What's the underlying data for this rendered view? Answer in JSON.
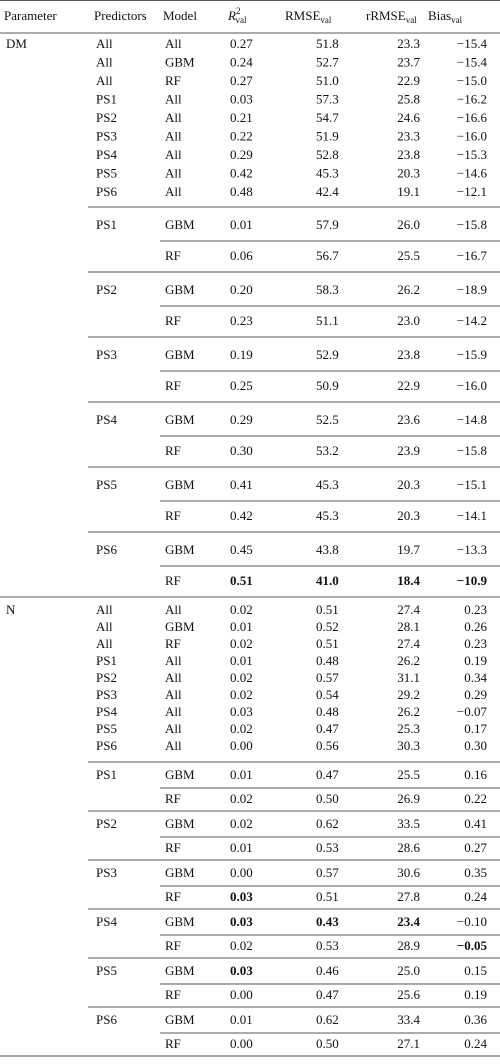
{
  "table": {
    "columns": [
      "Parameter",
      "Predictors",
      "Model",
      {
        "main": "R",
        "sup": "2",
        "sub": "val"
      },
      {
        "main": "RMSE",
        "sub": "val"
      },
      {
        "main": "rRMSE",
        "sub": "val"
      },
      {
        "main": "Bias",
        "sub": "val"
      }
    ],
    "groups": [
      {
        "parameter": "DM",
        "rows": [
          [
            "All",
            "All",
            "0.27",
            "51.8",
            "23.3",
            "−15.4"
          ],
          [
            "All",
            "GBM",
            "0.24",
            "52.7",
            "23.7",
            "−15.4"
          ],
          [
            "All",
            "RF",
            "0.27",
            "51.0",
            "22.9",
            "−15.0"
          ],
          [
            "PS1",
            "All",
            "0.03",
            "57.3",
            "25.8",
            "−16.2"
          ],
          [
            "PS2",
            "All",
            "0.21",
            "54.7",
            "24.6",
            "−16.6"
          ],
          [
            "PS3",
            "All",
            "0.22",
            "51.9",
            "23.3",
            "−16.0"
          ],
          [
            "PS4",
            "All",
            "0.29",
            "52.8",
            "23.8",
            "−15.3"
          ],
          [
            "PS5",
            "All",
            "0.42",
            "45.3",
            "20.3",
            "−14.6"
          ],
          [
            "PS6",
            "All",
            "0.48",
            "42.4",
            "19.1",
            "−12.1"
          ]
        ],
        "blocks": [
          {
            "predictors": "PS1",
            "rows": [
              {
                "cells": [
                  "GBM",
                  "0.01",
                  "57.9",
                  "26.0",
                  "−15.8"
                ]
              },
              {
                "cells": [
                  "RF",
                  "0.06",
                  "56.7",
                  "25.5",
                  "−16.7"
                ]
              }
            ]
          },
          {
            "predictors": "PS2",
            "rows": [
              {
                "cells": [
                  "GBM",
                  "0.20",
                  "58.3",
                  "26.2",
                  "−18.9"
                ]
              },
              {
                "cells": [
                  "RF",
                  "0.23",
                  "51.1",
                  "23.0",
                  "−14.2"
                ]
              }
            ]
          },
          {
            "predictors": "PS3",
            "rows": [
              {
                "cells": [
                  "GBM",
                  "0.19",
                  "52.9",
                  "23.8",
                  "−15.9"
                ]
              },
              {
                "cells": [
                  "RF",
                  "0.25",
                  "50.9",
                  "22.9",
                  "−16.0"
                ]
              }
            ]
          },
          {
            "predictors": "PS4",
            "rows": [
              {
                "cells": [
                  "GBM",
                  "0.29",
                  "52.5",
                  "23.6",
                  "−14.8"
                ]
              },
              {
                "cells": [
                  "RF",
                  "0.30",
                  "53.2",
                  "23.9",
                  "−15.8"
                ]
              }
            ]
          },
          {
            "predictors": "PS5",
            "rows": [
              {
                "cells": [
                  "GBM",
                  "0.41",
                  "45.3",
                  "20.3",
                  "−15.1"
                ]
              },
              {
                "cells": [
                  "RF",
                  "0.42",
                  "45.3",
                  "20.3",
                  "−14.1"
                ]
              }
            ]
          },
          {
            "predictors": "PS6",
            "rows": [
              {
                "cells": [
                  "GBM",
                  "0.45",
                  "43.8",
                  "19.7",
                  "−13.3"
                ]
              },
              {
                "cells": [
                  "RF",
                  "0.51",
                  "41.0",
                  "18.4",
                  "−10.9"
                ],
                "bold": [
                  1,
                  2,
                  3,
                  4
                ]
              }
            ]
          }
        ]
      },
      {
        "parameter": "N",
        "rows": [
          [
            "All",
            "All",
            "0.02",
            "0.51",
            "27.4",
            "0.23"
          ],
          [
            "All",
            "GBM",
            "0.01",
            "0.52",
            "28.1",
            "0.26"
          ],
          [
            "All",
            "RF",
            "0.02",
            "0.51",
            "27.4",
            "0.23"
          ],
          [
            "PS1",
            "All",
            "0.01",
            "0.48",
            "26.2",
            "0.19"
          ],
          [
            "PS2",
            "All",
            "0.02",
            "0.57",
            "31.1",
            "0.34"
          ],
          [
            "PS3",
            "All",
            "0.02",
            "0.54",
            "29.2",
            "0.29"
          ],
          [
            "PS4",
            "All",
            "0.03",
            "0.48",
            "26.2",
            "−0.07"
          ],
          [
            "PS5",
            "All",
            "0.02",
            "0.47",
            "25.3",
            "0.17"
          ],
          [
            "PS6",
            "All",
            "0.00",
            "0.56",
            "30.3",
            "0.30"
          ]
        ],
        "blocks": [
          {
            "predictors": "PS1",
            "rows": [
              {
                "cells": [
                  "GBM",
                  "0.01",
                  "0.47",
                  "25.5",
                  "0.16"
                ]
              },
              {
                "cells": [
                  "RF",
                  "0.02",
                  "0.50",
                  "26.9",
                  "0.22"
                ]
              }
            ]
          },
          {
            "predictors": "PS2",
            "rows": [
              {
                "cells": [
                  "GBM",
                  "0.02",
                  "0.62",
                  "33.5",
                  "0.41"
                ]
              },
              {
                "cells": [
                  "RF",
                  "0.01",
                  "0.53",
                  "28.6",
                  "0.27"
                ]
              }
            ]
          },
          {
            "predictors": "PS3",
            "rows": [
              {
                "cells": [
                  "GBM",
                  "0.00",
                  "0.57",
                  "30.6",
                  "0.35"
                ]
              },
              {
                "cells": [
                  "RF",
                  "0.03",
                  "0.51",
                  "27.8",
                  "0.24"
                ],
                "bold": [
                  1
                ]
              }
            ]
          },
          {
            "predictors": "PS4",
            "rows": [
              {
                "cells": [
                  "GBM",
                  "0.03",
                  "0.43",
                  "23.4",
                  "−0.10"
                ],
                "bold": [
                  1,
                  2,
                  3
                ]
              },
              {
                "cells": [
                  "RF",
                  "0.02",
                  "0.53",
                  "28.9",
                  "−0.05"
                ],
                "bold": [
                  4
                ]
              }
            ]
          },
          {
            "predictors": "PS5",
            "rows": [
              {
                "cells": [
                  "GBM",
                  "0.03",
                  "0.46",
                  "25.0",
                  "0.15"
                ],
                "bold": [
                  1
                ]
              },
              {
                "cells": [
                  "RF",
                  "0.00",
                  "0.47",
                  "25.6",
                  "0.19"
                ]
              }
            ]
          },
          {
            "predictors": "PS6",
            "rows": [
              {
                "cells": [
                  "GBM",
                  "0.01",
                  "0.62",
                  "33.4",
                  "0.36"
                ]
              },
              {
                "cells": [
                  "RF",
                  "0.00",
                  "0.50",
                  "27.1",
                  "0.24"
                ]
              }
            ]
          }
        ]
      }
    ]
  }
}
